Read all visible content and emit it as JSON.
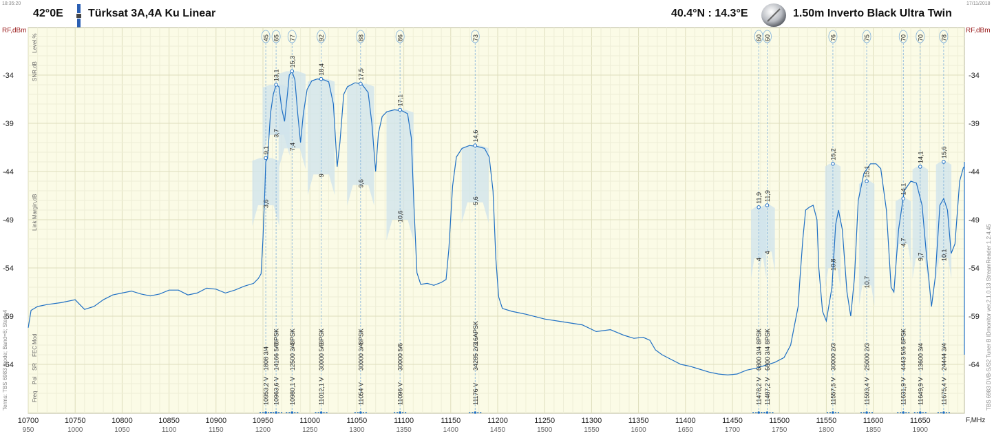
{
  "header": {
    "time": "18:35:20",
    "date": "17/11/2018",
    "orbital_position": "42°0E",
    "satellite_name": "Türksat 3A,4A Ku Linear",
    "location": "40.4°N : 14.3°E",
    "dish": "1.50m  Inverto Black Ultra Twin"
  },
  "left_axis_labels": {
    "rf": "RF,dBm",
    "level": "Level,%",
    "snr": "SNR,dB",
    "link_margin": "Link Margin,dB",
    "mod": "Mod",
    "fec": "FEC",
    "sr": "SR",
    "pol": "Pol",
    "freq": "Freq",
    "terms": "Terms:  TBS 6983 mode; Band=6; Step=4"
  },
  "right_axis_labels": {
    "rf": "RF,dBm",
    "fmhz": "F,MHz",
    "version": "TBS 6983 DVB-S/S2 Tuner B   IDmonitor  ver.2.1.0.13   StreamReader 1.2.4.45"
  },
  "colors": {
    "plot_bg": "#fbfbe6",
    "grid": "#e6e6c6",
    "trace": "#1e6fc4",
    "fill": "#d6e8ef",
    "axis_label": "#9a1c1c"
  },
  "chart_data": {
    "type": "line",
    "title": "",
    "xlabel": "F,MHz",
    "ylabel": "RF,dBm",
    "xlim": [
      10700,
      11730
    ],
    "ylim": [
      -67,
      -29
    ],
    "y_ticks": [
      -34,
      -39,
      -44,
      -49,
      -54,
      -59,
      -64
    ],
    "x_ticks": [
      10700,
      10750,
      10800,
      10850,
      10900,
      10950,
      11000,
      11050,
      11100,
      11150,
      11200,
      11250,
      11300,
      11350,
      11400,
      11450,
      11500,
      11550,
      11600,
      11650,
      11700
    ],
    "if_ticks": [
      950,
      1000,
      1050,
      1100,
      1150,
      1200,
      1250,
      1300,
      1350,
      1400,
      1450,
      1500,
      1550,
      1600,
      1650,
      1700,
      1750,
      1800,
      1850,
      1900
    ],
    "spectrum": [
      [
        10700,
        -60.2
      ],
      [
        10703,
        -58.4
      ],
      [
        10710,
        -58.0
      ],
      [
        10720,
        -57.8
      ],
      [
        10735,
        -57.6
      ],
      [
        10750,
        -57.3
      ],
      [
        10760,
        -58.3
      ],
      [
        10770,
        -58.0
      ],
      [
        10780,
        -57.3
      ],
      [
        10790,
        -56.8
      ],
      [
        10800,
        -56.6
      ],
      [
        10810,
        -56.4
      ],
      [
        10820,
        -56.7
      ],
      [
        10830,
        -56.9
      ],
      [
        10840,
        -56.7
      ],
      [
        10850,
        -56.3
      ],
      [
        10860,
        -56.3
      ],
      [
        10870,
        -56.8
      ],
      [
        10880,
        -56.6
      ],
      [
        10890,
        -56.1
      ],
      [
        10900,
        -56.2
      ],
      [
        10910,
        -56.6
      ],
      [
        10920,
        -56.3
      ],
      [
        10930,
        -55.9
      ],
      [
        10940,
        -55.6
      ],
      [
        10945,
        -55.1
      ],
      [
        10948,
        -54.6
      ],
      [
        10950,
        -51.0
      ],
      [
        10952,
        -46.0
      ],
      [
        10953,
        -43.0
      ],
      [
        10955,
        -42.6
      ],
      [
        10958,
        -38.0
      ],
      [
        10961,
        -36.0
      ],
      [
        10964,
        -35.0
      ],
      [
        10967,
        -35.2
      ],
      [
        10970,
        -37.5
      ],
      [
        10973,
        -38.8
      ],
      [
        10976,
        -36.0
      ],
      [
        10978,
        -34.0
      ],
      [
        10981,
        -33.6
      ],
      [
        10984,
        -34.5
      ],
      [
        10987,
        -38.0
      ],
      [
        10990,
        -41.0
      ],
      [
        10993,
        -38.0
      ],
      [
        10997,
        -35.5
      ],
      [
        11002,
        -34.6
      ],
      [
        11008,
        -34.4
      ],
      [
        11015,
        -34.5
      ],
      [
        11020,
        -34.7
      ],
      [
        11025,
        -37.0
      ],
      [
        11029,
        -43.5
      ],
      [
        11032,
        -41.0
      ],
      [
        11036,
        -36.0
      ],
      [
        11040,
        -35.2
      ],
      [
        11048,
        -34.8
      ],
      [
        11055,
        -34.9
      ],
      [
        11062,
        -35.8
      ],
      [
        11066,
        -39.0
      ],
      [
        11070,
        -44.0
      ],
      [
        11073,
        -40.0
      ],
      [
        11077,
        -38.3
      ],
      [
        11082,
        -37.8
      ],
      [
        11090,
        -37.6
      ],
      [
        11098,
        -37.7
      ],
      [
        11104,
        -38.0
      ],
      [
        11108,
        -40.5
      ],
      [
        11111,
        -48.0
      ],
      [
        11114,
        -54.5
      ],
      [
        11118,
        -55.7
      ],
      [
        11125,
        -55.6
      ],
      [
        11132,
        -55.8
      ],
      [
        11140,
        -55.5
      ],
      [
        11145,
        -55.2
      ],
      [
        11148,
        -52.0
      ],
      [
        11152,
        -45.5
      ],
      [
        11156,
        -42.5
      ],
      [
        11162,
        -41.6
      ],
      [
        11170,
        -41.3
      ],
      [
        11178,
        -41.4
      ],
      [
        11186,
        -41.6
      ],
      [
        11191,
        -42.5
      ],
      [
        11195,
        -46.0
      ],
      [
        11198,
        -53.0
      ],
      [
        11201,
        -57.0
      ],
      [
        11205,
        -58.2
      ],
      [
        11215,
        -58.5
      ],
      [
        11230,
        -58.8
      ],
      [
        11250,
        -59.3
      ],
      [
        11270,
        -59.6
      ],
      [
        11290,
        -59.9
      ],
      [
        11305,
        -60.6
      ],
      [
        11320,
        -60.4
      ],
      [
        11335,
        -61.0
      ],
      [
        11345,
        -61.3
      ],
      [
        11355,
        -61.2
      ],
      [
        11362,
        -61.5
      ],
      [
        11368,
        -62.5
      ],
      [
        11375,
        -63.0
      ],
      [
        11385,
        -63.5
      ],
      [
        11395,
        -64.0
      ],
      [
        11405,
        -64.2
      ],
      [
        11415,
        -64.5
      ],
      [
        11425,
        -64.8
      ],
      [
        11435,
        -65.0
      ],
      [
        11445,
        -65.1
      ],
      [
        11455,
        -65.0
      ],
      [
        11465,
        -64.6
      ],
      [
        11475,
        -64.4
      ],
      [
        11485,
        -64.1
      ],
      [
        11495,
        -63.8
      ],
      [
        11505,
        -63.3
      ],
      [
        11512,
        -62.0
      ],
      [
        11516,
        -60.0
      ],
      [
        11520,
        -58.0
      ],
      [
        11522,
        -55.0
      ],
      [
        11525,
        -51.0
      ],
      [
        11528,
        -48.0
      ],
      [
        11532,
        -47.7
      ],
      [
        11536,
        -47.5
      ],
      [
        11540,
        -49.0
      ],
      [
        11542,
        -54.0
      ],
      [
        11546,
        -58.5
      ],
      [
        11550,
        -59.5
      ],
      [
        11556,
        -56.0
      ],
      [
        11560,
        -49.5
      ],
      [
        11563,
        -48.0
      ],
      [
        11567,
        -50.0
      ],
      [
        11572,
        -56.5
      ],
      [
        11576,
        -59.0
      ],
      [
        11580,
        -55.0
      ],
      [
        11584,
        -47.0
      ],
      [
        11590,
        -44.2
      ],
      [
        11597,
        -43.2
      ],
      [
        11603,
        -43.2
      ],
      [
        11608,
        -43.7
      ],
      [
        11614,
        -48.0
      ],
      [
        11619,
        -56.0
      ],
      [
        11622,
        -56.5
      ],
      [
        11627,
        -50.0
      ],
      [
        11633,
        -46.0
      ],
      [
        11640,
        -45.0
      ],
      [
        11646,
        -45.2
      ],
      [
        11652,
        -47.5
      ],
      [
        11657,
        -53.0
      ],
      [
        11662,
        -58.0
      ],
      [
        11666,
        -55.0
      ],
      [
        11671,
        -47.5
      ],
      [
        11675,
        -46.8
      ],
      [
        11679,
        -48.0
      ],
      [
        11683,
        -52.5
      ],
      [
        11687,
        -51.5
      ],
      [
        11692,
        -45.0
      ],
      [
        11696,
        -43.6
      ],
      [
        11700,
        -43.5
      ],
      [
        11705,
        -45.0
      ],
      [
        11710,
        -52.0
      ],
      [
        11714,
        -55.5
      ],
      [
        11719,
        -50.0
      ],
      [
        11724,
        -44.5
      ],
      [
        11728,
        -43.2
      ],
      [
        11733,
        -43.0
      ],
      [
        11738,
        -44.0
      ],
      [
        11742,
        -47.0
      ],
      [
        11746,
        -53.0
      ],
      [
        11750,
        -59.5
      ],
      [
        11754,
        -63.0
      ]
    ],
    "transponders": [
      {
        "freq": 10953,
        "level": "45",
        "snr": "9,1",
        "snr_rf": -42.6,
        "margin": "3,6",
        "margin_rf": -47.5,
        "mod": "",
        "fec": "3/4",
        "sr": "1808",
        "pol": "V",
        "freq_label": "10953,2"
      },
      {
        "freq": 10964,
        "level": "65",
        "snr": "13,1",
        "snr_rf": -35.0,
        "margin": "3,7",
        "margin_rf": -40.2,
        "mod": "8PSK",
        "fec": "5/6",
        "sr": "14166",
        "pol": "V",
        "freq_label": "10963,6"
      },
      {
        "freq": 10981,
        "level": "77",
        "snr": "15,3",
        "snr_rf": -33.6,
        "margin": "7,4",
        "margin_rf": -41.6,
        "mod": "8PSK",
        "fec": "3/4",
        "sr": "12500",
        "pol": "V",
        "freq_label": "10980,1"
      },
      {
        "freq": 11012,
        "level": "92",
        "snr": "18,4",
        "snr_rf": -34.4,
        "margin": "9",
        "margin_rf": -44.3,
        "mod": "8PSK",
        "fec": "5/6",
        "sr": "30000",
        "pol": "V",
        "freq_label": "11012,1"
      },
      {
        "freq": 11054,
        "level": "88",
        "snr": "17,5",
        "snr_rf": -34.9,
        "margin": "9,6",
        "margin_rf": -45.4,
        "mod": "8PSK",
        "fec": "3/4",
        "sr": "30000",
        "pol": "V",
        "freq_label": "11054"
      },
      {
        "freq": 11096,
        "level": "86",
        "snr": "17,1",
        "snr_rf": -37.6,
        "margin": "10,6",
        "margin_rf": -49.0,
        "mod": "",
        "fec": "5/6",
        "sr": "30000",
        "pol": "V",
        "freq_label": "11096"
      },
      {
        "freq": 11176,
        "level": "73",
        "snr": "14,6",
        "snr_rf": -41.3,
        "margin": "5,6",
        "margin_rf": -47.2,
        "mod": "16APSK",
        "fec": "2/3",
        "sr": "34285",
        "pol": "V",
        "freq_label": "11176"
      },
      {
        "freq": 11478,
        "level": "60",
        "snr": "11,9",
        "snr_rf": -47.7,
        "margin": "4",
        "margin_rf": -53.0,
        "mod": "8PSK",
        "fec": "3/4",
        "sr": "6800",
        "pol": "V",
        "freq_label": "11478,2"
      },
      {
        "freq": 11487,
        "level": "60",
        "snr": "11,9",
        "snr_rf": -47.5,
        "margin": "4",
        "margin_rf": -52.3,
        "mod": "8PSK",
        "fec": "3/4",
        "sr": "6800",
        "pol": "V",
        "freq_label": "11487,2"
      },
      {
        "freq": 11557,
        "level": "76",
        "snr": "15,2",
        "snr_rf": -43.2,
        "margin": "10,8",
        "margin_rf": -54.0,
        "mod": "",
        "fec": "2/3",
        "sr": "30000",
        "pol": "V",
        "freq_label": "11557,5"
      },
      {
        "freq": 11593,
        "level": "75",
        "snr": "15,1",
        "snr_rf": -45.0,
        "margin": "10,7",
        "margin_rf": -55.8,
        "mod": "",
        "fec": "2/3",
        "sr": "25000",
        "pol": "V",
        "freq_label": "11593,4"
      },
      {
        "freq": 11632,
        "level": "70",
        "snr": "14,1",
        "snr_rf": -46.8,
        "margin": "4,7",
        "margin_rf": -51.5,
        "mod": "8PSK",
        "fec": "5/6",
        "sr": "4443",
        "pol": "V",
        "freq_label": "11631,9"
      },
      {
        "freq": 11650,
        "level": "70",
        "snr": "14,1",
        "snr_rf": -43.5,
        "margin": "9,7",
        "margin_rf": -53.0,
        "mod": "",
        "fec": "3/4",
        "sr": "13600",
        "pol": "V",
        "freq_label": "11649,9"
      },
      {
        "freq": 11675,
        "level": "78",
        "snr": "15,6",
        "snr_rf": -43.0,
        "margin": "10,1",
        "margin_rf": -53.0,
        "mod": "",
        "fec": "3/4",
        "sr": "24444",
        "pol": "V",
        "freq_label": "11675,4"
      }
    ]
  }
}
